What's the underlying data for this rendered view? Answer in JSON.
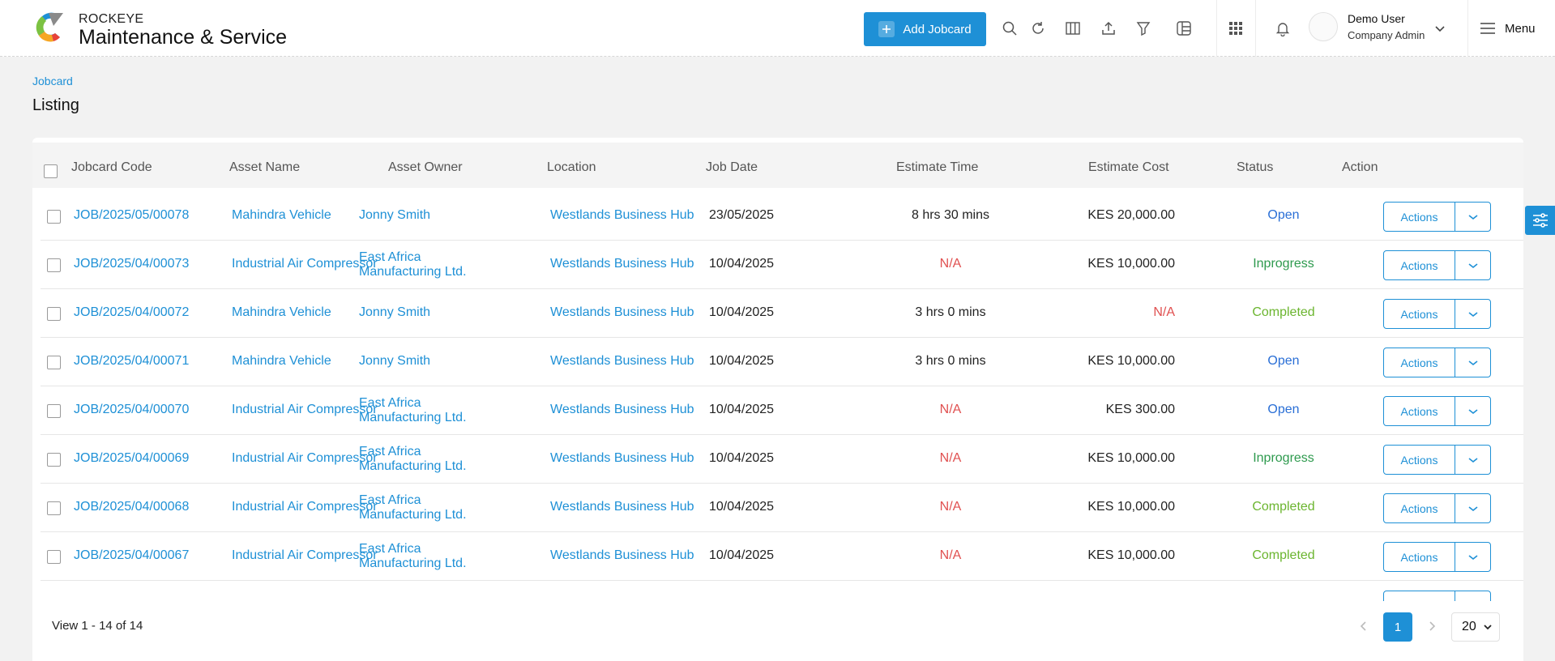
{
  "header": {
    "brand_top": "ROCKEYE",
    "brand_main": "Maintenance & Service",
    "add_button": "Add Jobcard",
    "user_name": "Demo User",
    "user_role": "Company Admin",
    "menu_label": "Menu"
  },
  "page": {
    "breadcrumb": "Jobcard",
    "title": "Listing"
  },
  "table": {
    "columns": [
      "Jobcard Code",
      "Asset Name",
      "Asset Owner",
      "Location",
      "Job Date",
      "Estimate Time",
      "Estimate Cost",
      "Status",
      "Action"
    ],
    "action_label": "Actions",
    "rows": [
      {
        "code": "JOB/2025/05/00078",
        "asset": "Mahindra Vehicle",
        "owner1": "Jonny Smith",
        "owner2": "",
        "location": "Westlands Business Hub",
        "date": "23/05/2025",
        "time": "8 hrs 30 mins",
        "cost": "KES 20,000.00",
        "status": "Open"
      },
      {
        "code": "JOB/2025/04/00073",
        "asset": "Industrial Air Compressor",
        "owner1": "East Africa",
        "owner2": "Manufacturing Ltd.",
        "location": "Westlands Business Hub",
        "date": "10/04/2025",
        "time": "N/A",
        "cost": "KES 10,000.00",
        "status": "Inprogress"
      },
      {
        "code": "JOB/2025/04/00072",
        "asset": "Mahindra Vehicle",
        "owner1": "Jonny Smith",
        "owner2": "",
        "location": "Westlands Business Hub",
        "date": "10/04/2025",
        "time": "3 hrs 0 mins",
        "cost": "N/A",
        "status": "Completed"
      },
      {
        "code": "JOB/2025/04/00071",
        "asset": "Mahindra Vehicle",
        "owner1": "Jonny Smith",
        "owner2": "",
        "location": "Westlands Business Hub",
        "date": "10/04/2025",
        "time": "3 hrs 0 mins",
        "cost": "KES 10,000.00",
        "status": "Open"
      },
      {
        "code": "JOB/2025/04/00070",
        "asset": "Industrial Air Compressor",
        "owner1": "East Africa",
        "owner2": "Manufacturing Ltd.",
        "location": "Westlands Business Hub",
        "date": "10/04/2025",
        "time": "N/A",
        "cost": "KES 300.00",
        "status": "Open"
      },
      {
        "code": "JOB/2025/04/00069",
        "asset": "Industrial Air Compressor",
        "owner1": "East Africa",
        "owner2": "Manufacturing Ltd.",
        "location": "Westlands Business Hub",
        "date": "10/04/2025",
        "time": "N/A",
        "cost": "KES 10,000.00",
        "status": "Inprogress"
      },
      {
        "code": "JOB/2025/04/00068",
        "asset": "Industrial Air Compressor",
        "owner1": "East Africa",
        "owner2": "Manufacturing Ltd.",
        "location": "Westlands Business Hub",
        "date": "10/04/2025",
        "time": "N/A",
        "cost": "KES 10,000.00",
        "status": "Completed"
      },
      {
        "code": "JOB/2025/04/00067",
        "asset": "Industrial Air Compressor",
        "owner1": "East Africa",
        "owner2": "Manufacturing Ltd.",
        "location": "Westlands Business Hub",
        "date": "10/04/2025",
        "time": "N/A",
        "cost": "KES 10,000.00",
        "status": "Completed"
      }
    ]
  },
  "footer": {
    "view_text": "View 1 - 14 of 14",
    "current_page": "1",
    "page_size": "20"
  },
  "colors": {
    "accent": "#1e90d6",
    "status_open": "#2a6fd6",
    "status_inprogress": "#2e9a4e",
    "status_completed": "#6bb52f",
    "na": "#e05050"
  },
  "icons": [
    "logo-icon",
    "plus-icon",
    "search-icon",
    "refresh-icon",
    "columns-icon",
    "export-icon",
    "filter-icon",
    "layout-icon",
    "apps-grid-icon",
    "bell-icon",
    "chevron-down-icon",
    "hamburger-icon",
    "sliders-icon",
    "chevron-left-icon",
    "chevron-right-icon"
  ]
}
